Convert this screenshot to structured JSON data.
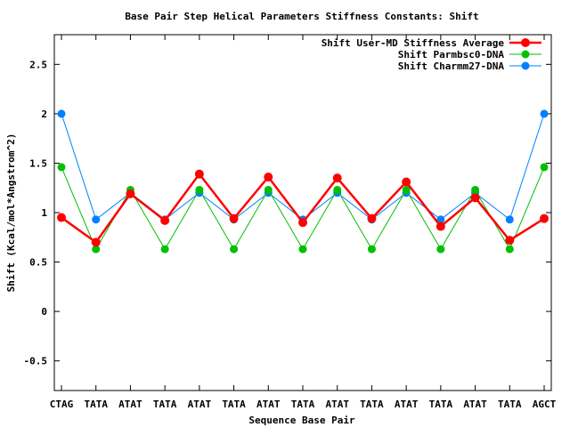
{
  "chart_data": {
    "type": "line",
    "title": "Base Pair Step Helical Parameters Stiffness Constants: Shift",
    "xlabel": "Sequence Base Pair",
    "ylabel": "Shift (Kcal/mol*Angstrom^2)",
    "categories": [
      "CTAG",
      "TATA",
      "ATAT",
      "TATA",
      "ATAT",
      "TATA",
      "ATAT",
      "TATA",
      "ATAT",
      "TATA",
      "ATAT",
      "TATA",
      "ATAT",
      "TATA",
      "AGCT"
    ],
    "ylim": [
      -0.8,
      2.8
    ],
    "yticks": [
      -0.5,
      0,
      0.5,
      1,
      1.5,
      2,
      2.5
    ],
    "ytick_labels": [
      "-0.5",
      "0",
      "0.5",
      "1",
      "1.5",
      "2",
      "2.5"
    ],
    "grid": false,
    "legend_position": "top-right",
    "series": [
      {
        "name": "Shift User-MD Stiffness Average",
        "color": "#ff0000",
        "values": [
          0.95,
          0.7,
          1.19,
          0.92,
          1.39,
          0.94,
          1.36,
          0.9,
          1.35,
          0.94,
          1.31,
          0.86,
          1.15,
          0.72,
          0.94
        ]
      },
      {
        "name": "Shift Parmbsc0-DNA",
        "color": "#00c000",
        "values": [
          1.46,
          0.63,
          1.23,
          0.63,
          1.23,
          0.63,
          1.23,
          0.63,
          1.23,
          0.63,
          1.23,
          0.63,
          1.23,
          0.63,
          1.46
        ]
      },
      {
        "name": "Shift Charmm27-DNA",
        "color": "#0080ff",
        "values": [
          2.0,
          0.93,
          1.2,
          0.93,
          1.2,
          0.93,
          1.2,
          0.93,
          1.2,
          0.93,
          1.2,
          0.93,
          1.2,
          0.93,
          2.0
        ]
      }
    ]
  }
}
